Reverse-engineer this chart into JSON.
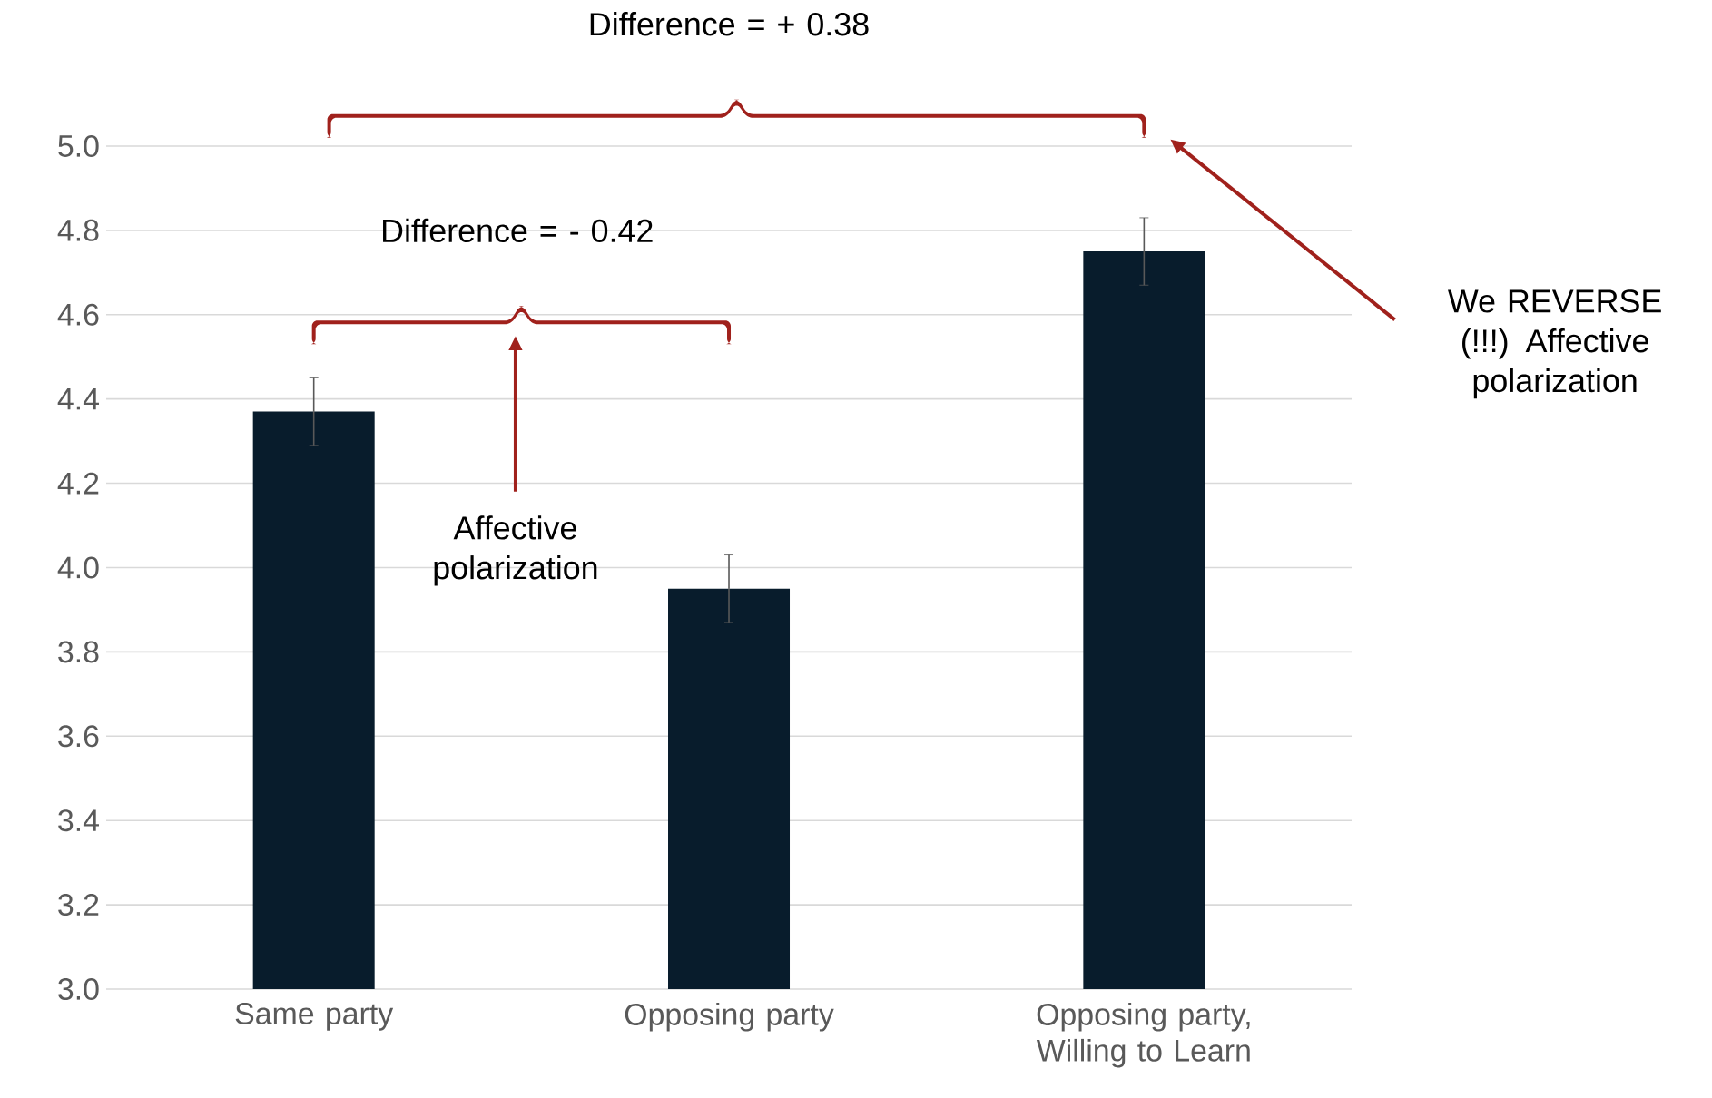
{
  "chart_data": {
    "type": "bar",
    "categories": [
      "Same party",
      "Opposing party",
      "Opposing party, Willing to Learn"
    ],
    "values": [
      4.37,
      3.95,
      4.75
    ],
    "errors": [
      0.08,
      0.08,
      0.08
    ],
    "color": "#081c2c",
    "ylim": [
      3.0,
      5.0
    ],
    "yticks": [
      {
        "value": 3.0,
        "label": "3.0"
      },
      {
        "value": 3.2,
        "label": "3.2"
      },
      {
        "value": 3.4,
        "label": "3.4"
      },
      {
        "value": 3.6,
        "label": "3.6"
      },
      {
        "value": 3.8,
        "label": "3.8"
      },
      {
        "value": 4.0,
        "label": "4.0"
      },
      {
        "value": 4.2,
        "label": "4.2"
      },
      {
        "value": 4.4,
        "label": "4.4"
      },
      {
        "value": 4.6,
        "label": "4.6"
      },
      {
        "value": 4.8,
        "label": "4.8"
      },
      {
        "value": 5.0,
        "label": "5.0"
      }
    ],
    "grid": "y",
    "annotations": [
      "Difference = + 0.38",
      "Difference = - 0.42",
      "Affective polarization",
      "We REVERSE (!!!) Affective polarization"
    ]
  }
}
